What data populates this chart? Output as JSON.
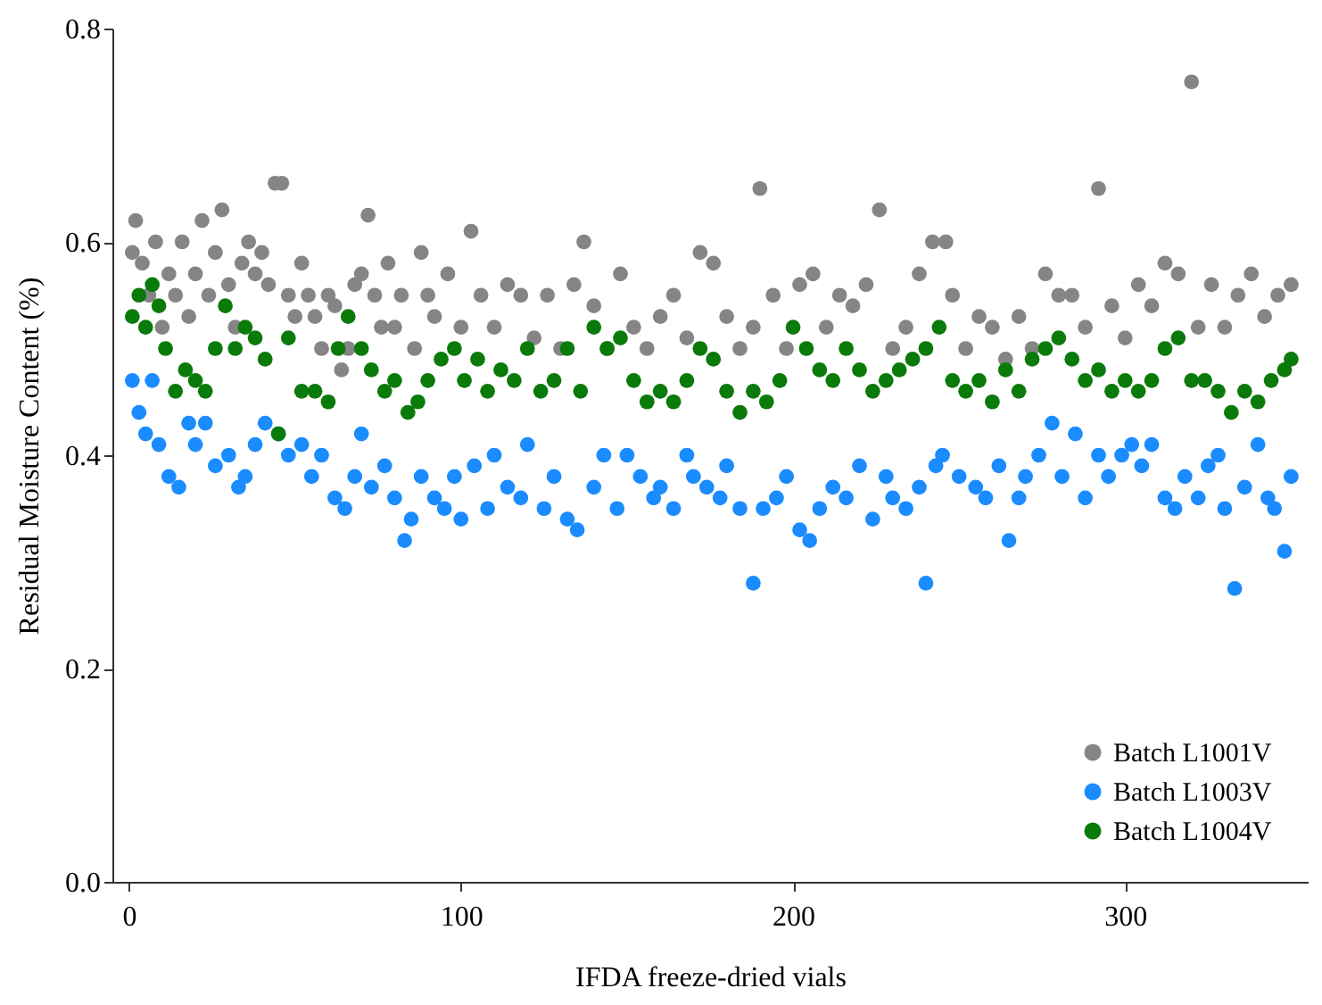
{
  "chart_data": {
    "type": "scatter",
    "xlabel": "IFDA freeze-dried vials",
    "ylabel": "Residual Moisture Content (%)",
    "xlim": [
      -5,
      355
    ],
    "xticks": [
      0,
      100,
      200,
      300
    ],
    "ylim": [
      0,
      0.8
    ],
    "yticks": [
      {
        "value": 0,
        "label": "0.0"
      },
      0.2,
      0.4,
      0.6,
      0.8
    ],
    "grid": false,
    "legend": "bottom right",
    "marker": "circle",
    "series": [
      {
        "name": "Batch L1001V",
        "color": "#858585",
        "x": [
          1,
          2,
          4,
          6,
          8,
          10,
          12,
          14,
          16,
          18,
          20,
          22,
          24,
          26,
          28,
          30,
          32,
          34,
          36,
          38,
          40,
          42,
          44,
          46,
          48,
          50,
          52,
          54,
          56,
          58,
          60,
          62,
          64,
          66,
          68,
          70,
          72,
          74,
          76,
          78,
          80,
          82,
          86,
          88,
          90,
          92,
          96,
          100,
          103,
          106,
          110,
          114,
          118,
          122,
          126,
          130,
          134,
          137,
          140,
          144,
          148,
          152,
          156,
          160,
          164,
          168,
          172,
          176,
          180,
          184,
          188,
          190,
          194,
          198,
          202,
          206,
          210,
          214,
          218,
          222,
          226,
          230,
          234,
          238,
          242,
          246,
          248,
          252,
          256,
          260,
          264,
          268,
          272,
          276,
          280,
          284,
          288,
          292,
          296,
          300,
          304,
          308,
          312,
          316,
          320,
          322,
          326,
          330,
          334,
          338,
          342,
          346,
          350
        ],
        "values": [
          0.59,
          0.62,
          0.58,
          0.55,
          0.6,
          0.52,
          0.57,
          0.55,
          0.6,
          0.53,
          0.57,
          0.62,
          0.55,
          0.59,
          0.63,
          0.56,
          0.52,
          0.58,
          0.6,
          0.57,
          0.59,
          0.56,
          0.655,
          0.655,
          0.55,
          0.53,
          0.58,
          0.55,
          0.53,
          0.5,
          0.55,
          0.54,
          0.48,
          0.5,
          0.56,
          0.57,
          0.625,
          0.55,
          0.52,
          0.58,
          0.52,
          0.55,
          0.5,
          0.59,
          0.55,
          0.53,
          0.57,
          0.52,
          0.61,
          0.55,
          0.52,
          0.56,
          0.55,
          0.51,
          0.55,
          0.5,
          0.56,
          0.6,
          0.54,
          0.5,
          0.57,
          0.52,
          0.5,
          0.53,
          0.55,
          0.51,
          0.59,
          0.58,
          0.53,
          0.5,
          0.52,
          0.65,
          0.55,
          0.5,
          0.56,
          0.57,
          0.52,
          0.55,
          0.54,
          0.56,
          0.63,
          0.5,
          0.52,
          0.57,
          0.6,
          0.6,
          0.55,
          0.5,
          0.53,
          0.52,
          0.49,
          0.53,
          0.5,
          0.57,
          0.55,
          0.55,
          0.52,
          0.65,
          0.54,
          0.51,
          0.56,
          0.54,
          0.58,
          0.57,
          0.75,
          0.52,
          0.56,
          0.52,
          0.55,
          0.57,
          0.53,
          0.55,
          0.56
        ]
      },
      {
        "name": "Batch L1003V",
        "color": "#1a8cff",
        "x": [
          1,
          3,
          5,
          7,
          9,
          12,
          15,
          18,
          20,
          23,
          26,
          30,
          33,
          35,
          38,
          41,
          45,
          48,
          52,
          55,
          58,
          62,
          65,
          68,
          70,
          73,
          77,
          80,
          83,
          85,
          88,
          92,
          95,
          98,
          100,
          104,
          108,
          110,
          114,
          118,
          120,
          125,
          128,
          132,
          135,
          140,
          143,
          147,
          150,
          154,
          158,
          160,
          164,
          168,
          170,
          174,
          178,
          180,
          184,
          188,
          191,
          195,
          198,
          202,
          205,
          208,
          212,
          216,
          220,
          224,
          228,
          230,
          234,
          238,
          240,
          243,
          245,
          250,
          255,
          258,
          262,
          265,
          268,
          270,
          274,
          278,
          281,
          285,
          288,
          292,
          295,
          299,
          302,
          305,
          308,
          312,
          315,
          318,
          322,
          325,
          328,
          330,
          333,
          336,
          340,
          343,
          345,
          348,
          350
        ],
        "values": [
          0.47,
          0.44,
          0.42,
          0.47,
          0.41,
          0.38,
          0.37,
          0.43,
          0.41,
          0.43,
          0.39,
          0.4,
          0.37,
          0.38,
          0.41,
          0.43,
          0.42,
          0.4,
          0.41,
          0.38,
          0.4,
          0.36,
          0.35,
          0.38,
          0.42,
          0.37,
          0.39,
          0.36,
          0.32,
          0.34,
          0.38,
          0.36,
          0.35,
          0.38,
          0.34,
          0.39,
          0.35,
          0.4,
          0.37,
          0.36,
          0.41,
          0.35,
          0.38,
          0.34,
          0.33,
          0.37,
          0.4,
          0.35,
          0.4,
          0.38,
          0.36,
          0.37,
          0.35,
          0.4,
          0.38,
          0.37,
          0.36,
          0.39,
          0.35,
          0.28,
          0.35,
          0.36,
          0.38,
          0.33,
          0.32,
          0.35,
          0.37,
          0.36,
          0.39,
          0.34,
          0.38,
          0.36,
          0.35,
          0.37,
          0.28,
          0.39,
          0.4,
          0.38,
          0.37,
          0.36,
          0.39,
          0.32,
          0.36,
          0.38,
          0.4,
          0.43,
          0.38,
          0.42,
          0.36,
          0.4,
          0.38,
          0.4,
          0.41,
          0.39,
          0.41,
          0.36,
          0.35,
          0.38,
          0.36,
          0.39,
          0.4,
          0.35,
          0.275,
          0.37,
          0.41,
          0.36,
          0.35,
          0.31,
          0.38
        ]
      },
      {
        "name": "Batch L1004V",
        "color": "#0a7a0a",
        "x": [
          1,
          3,
          5,
          7,
          9,
          11,
          14,
          17,
          20,
          23,
          26,
          29,
          32,
          35,
          38,
          41,
          45,
          48,
          52,
          56,
          60,
          63,
          66,
          70,
          73,
          77,
          80,
          84,
          87,
          90,
          94,
          98,
          101,
          105,
          108,
          112,
          116,
          120,
          124,
          128,
          132,
          136,
          140,
          144,
          148,
          152,
          156,
          160,
          164,
          168,
          172,
          176,
          180,
          184,
          188,
          192,
          196,
          200,
          204,
          208,
          212,
          216,
          220,
          224,
          228,
          232,
          236,
          240,
          244,
          248,
          252,
          256,
          260,
          264,
          268,
          272,
          276,
          280,
          284,
          288,
          292,
          296,
          300,
          304,
          308,
          312,
          316,
          320,
          324,
          328,
          332,
          336,
          340,
          344,
          348,
          350
        ],
        "values": [
          0.53,
          0.55,
          0.52,
          0.56,
          0.54,
          0.5,
          0.46,
          0.48,
          0.47,
          0.46,
          0.5,
          0.54,
          0.5,
          0.52,
          0.51,
          0.49,
          0.42,
          0.51,
          0.46,
          0.46,
          0.45,
          0.5,
          0.53,
          0.5,
          0.48,
          0.46,
          0.47,
          0.44,
          0.45,
          0.47,
          0.49,
          0.5,
          0.47,
          0.49,
          0.46,
          0.48,
          0.47,
          0.5,
          0.46,
          0.47,
          0.5,
          0.46,
          0.52,
          0.5,
          0.51,
          0.47,
          0.45,
          0.46,
          0.45,
          0.47,
          0.5,
          0.49,
          0.46,
          0.44,
          0.46,
          0.45,
          0.47,
          0.52,
          0.5,
          0.48,
          0.47,
          0.5,
          0.48,
          0.46,
          0.47,
          0.48,
          0.49,
          0.5,
          0.52,
          0.47,
          0.46,
          0.47,
          0.45,
          0.48,
          0.46,
          0.49,
          0.5,
          0.51,
          0.49,
          0.47,
          0.48,
          0.46,
          0.47,
          0.46,
          0.47,
          0.5,
          0.51,
          0.47,
          0.47,
          0.46,
          0.44,
          0.46,
          0.45,
          0.47,
          0.48,
          0.49
        ]
      }
    ]
  }
}
